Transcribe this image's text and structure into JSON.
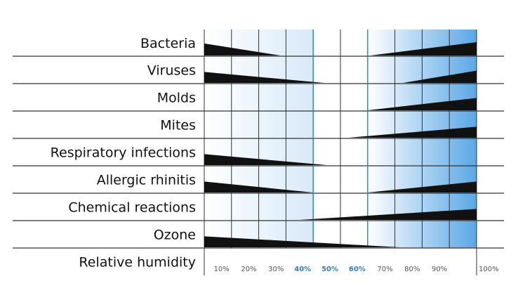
{
  "chart_data": {
    "type": "area",
    "xlabel": "Relative humidity",
    "xlim": [
      0,
      100
    ],
    "x_ticks": [
      "10%",
      "20%",
      "30%",
      "40%",
      "50%",
      "60%",
      "70%",
      "80%",
      "90%",
      "100%"
    ],
    "optimal_range": [
      40,
      60
    ],
    "colors": {
      "wedge": "#111111",
      "gradient_light": "#ffffff",
      "gradient_dark": "#5aa7e6",
      "highlight": "#2f7fc1",
      "grid": "#333333"
    },
    "rows": [
      {
        "label": "Bacteria",
        "low": {
          "end": 28,
          "max": 0.45
        },
        "high": {
          "start": 61,
          "max": 0.5
        }
      },
      {
        "label": "Viruses",
        "low": {
          "end": 44,
          "max": 0.4
        },
        "high": {
          "start": 73,
          "max": 0.45
        }
      },
      {
        "label": "Molds",
        "low": null,
        "high": {
          "start": 60,
          "max": 0.45
        }
      },
      {
        "label": "Mites",
        "low": null,
        "high": {
          "start": 53,
          "max": 0.4
        }
      },
      {
        "label": "Respiratory infections",
        "low": {
          "end": 45,
          "max": 0.4
        },
        "high": null
      },
      {
        "label": "Allergic rhinitis",
        "low": {
          "end": 40,
          "max": 0.4
        },
        "high": {
          "start": 60,
          "max": 0.4
        }
      },
      {
        "label": "Chemical reactions",
        "low": null,
        "high": {
          "start": 35,
          "max": 0.4
        }
      },
      {
        "label": "Ozone",
        "low": {
          "end": 72,
          "max": 0.4
        },
        "high": null
      }
    ]
  }
}
